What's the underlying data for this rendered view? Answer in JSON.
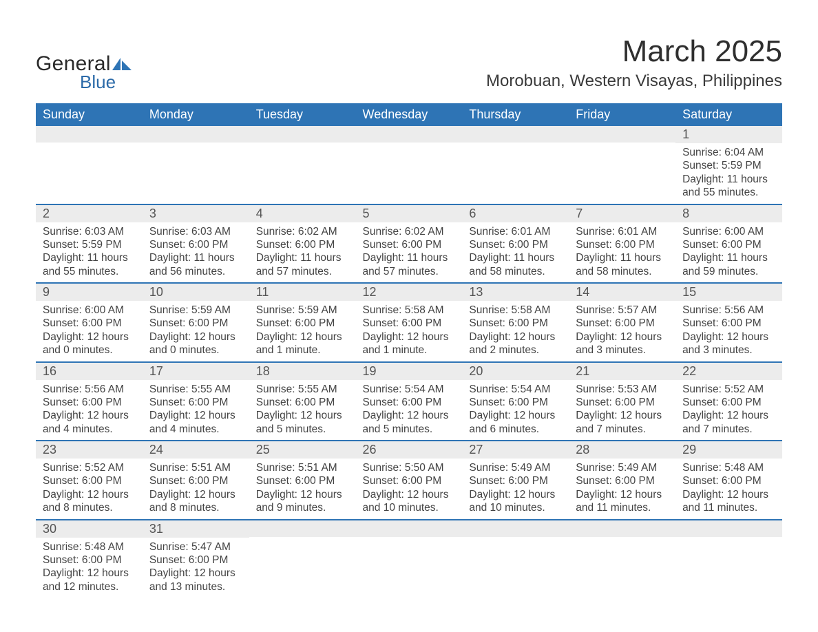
{
  "logo": {
    "general": "General",
    "blue": "Blue"
  },
  "title": {
    "month": "March 2025",
    "location": "Morobuan, Western Visayas, Philippines"
  },
  "colors": {
    "header_bg": "#2e74b5",
    "header_text": "#ffffff",
    "row_sep": "#2e74b5",
    "daynum_bg": "#ececec",
    "daynum_text": "#555555",
    "body_text": "#444444",
    "page_bg": "#ffffff",
    "logo_text": "#2a2a2a",
    "logo_blue": "#2b6aa8"
  },
  "weekdays": [
    "Sunday",
    "Monday",
    "Tuesday",
    "Wednesday",
    "Thursday",
    "Friday",
    "Saturday"
  ],
  "weeks": [
    [
      {
        "n": "",
        "sr": "",
        "ss": "",
        "dl": ""
      },
      {
        "n": "",
        "sr": "",
        "ss": "",
        "dl": ""
      },
      {
        "n": "",
        "sr": "",
        "ss": "",
        "dl": ""
      },
      {
        "n": "",
        "sr": "",
        "ss": "",
        "dl": ""
      },
      {
        "n": "",
        "sr": "",
        "ss": "",
        "dl": ""
      },
      {
        "n": "",
        "sr": "",
        "ss": "",
        "dl": ""
      },
      {
        "n": "1",
        "sr": "Sunrise: 6:04 AM",
        "ss": "Sunset: 5:59 PM",
        "dl": "Daylight: 11 hours and 55 minutes."
      }
    ],
    [
      {
        "n": "2",
        "sr": "Sunrise: 6:03 AM",
        "ss": "Sunset: 5:59 PM",
        "dl": "Daylight: 11 hours and 55 minutes."
      },
      {
        "n": "3",
        "sr": "Sunrise: 6:03 AM",
        "ss": "Sunset: 6:00 PM",
        "dl": "Daylight: 11 hours and 56 minutes."
      },
      {
        "n": "4",
        "sr": "Sunrise: 6:02 AM",
        "ss": "Sunset: 6:00 PM",
        "dl": "Daylight: 11 hours and 57 minutes."
      },
      {
        "n": "5",
        "sr": "Sunrise: 6:02 AM",
        "ss": "Sunset: 6:00 PM",
        "dl": "Daylight: 11 hours and 57 minutes."
      },
      {
        "n": "6",
        "sr": "Sunrise: 6:01 AM",
        "ss": "Sunset: 6:00 PM",
        "dl": "Daylight: 11 hours and 58 minutes."
      },
      {
        "n": "7",
        "sr": "Sunrise: 6:01 AM",
        "ss": "Sunset: 6:00 PM",
        "dl": "Daylight: 11 hours and 58 minutes."
      },
      {
        "n": "8",
        "sr": "Sunrise: 6:00 AM",
        "ss": "Sunset: 6:00 PM",
        "dl": "Daylight: 11 hours and 59 minutes."
      }
    ],
    [
      {
        "n": "9",
        "sr": "Sunrise: 6:00 AM",
        "ss": "Sunset: 6:00 PM",
        "dl": "Daylight: 12 hours and 0 minutes."
      },
      {
        "n": "10",
        "sr": "Sunrise: 5:59 AM",
        "ss": "Sunset: 6:00 PM",
        "dl": "Daylight: 12 hours and 0 minutes."
      },
      {
        "n": "11",
        "sr": "Sunrise: 5:59 AM",
        "ss": "Sunset: 6:00 PM",
        "dl": "Daylight: 12 hours and 1 minute."
      },
      {
        "n": "12",
        "sr": "Sunrise: 5:58 AM",
        "ss": "Sunset: 6:00 PM",
        "dl": "Daylight: 12 hours and 1 minute."
      },
      {
        "n": "13",
        "sr": "Sunrise: 5:58 AM",
        "ss": "Sunset: 6:00 PM",
        "dl": "Daylight: 12 hours and 2 minutes."
      },
      {
        "n": "14",
        "sr": "Sunrise: 5:57 AM",
        "ss": "Sunset: 6:00 PM",
        "dl": "Daylight: 12 hours and 3 minutes."
      },
      {
        "n": "15",
        "sr": "Sunrise: 5:56 AM",
        "ss": "Sunset: 6:00 PM",
        "dl": "Daylight: 12 hours and 3 minutes."
      }
    ],
    [
      {
        "n": "16",
        "sr": "Sunrise: 5:56 AM",
        "ss": "Sunset: 6:00 PM",
        "dl": "Daylight: 12 hours and 4 minutes."
      },
      {
        "n": "17",
        "sr": "Sunrise: 5:55 AM",
        "ss": "Sunset: 6:00 PM",
        "dl": "Daylight: 12 hours and 4 minutes."
      },
      {
        "n": "18",
        "sr": "Sunrise: 5:55 AM",
        "ss": "Sunset: 6:00 PM",
        "dl": "Daylight: 12 hours and 5 minutes."
      },
      {
        "n": "19",
        "sr": "Sunrise: 5:54 AM",
        "ss": "Sunset: 6:00 PM",
        "dl": "Daylight: 12 hours and 5 minutes."
      },
      {
        "n": "20",
        "sr": "Sunrise: 5:54 AM",
        "ss": "Sunset: 6:00 PM",
        "dl": "Daylight: 12 hours and 6 minutes."
      },
      {
        "n": "21",
        "sr": "Sunrise: 5:53 AM",
        "ss": "Sunset: 6:00 PM",
        "dl": "Daylight: 12 hours and 7 minutes."
      },
      {
        "n": "22",
        "sr": "Sunrise: 5:52 AM",
        "ss": "Sunset: 6:00 PM",
        "dl": "Daylight: 12 hours and 7 minutes."
      }
    ],
    [
      {
        "n": "23",
        "sr": "Sunrise: 5:52 AM",
        "ss": "Sunset: 6:00 PM",
        "dl": "Daylight: 12 hours and 8 minutes."
      },
      {
        "n": "24",
        "sr": "Sunrise: 5:51 AM",
        "ss": "Sunset: 6:00 PM",
        "dl": "Daylight: 12 hours and 8 minutes."
      },
      {
        "n": "25",
        "sr": "Sunrise: 5:51 AM",
        "ss": "Sunset: 6:00 PM",
        "dl": "Daylight: 12 hours and 9 minutes."
      },
      {
        "n": "26",
        "sr": "Sunrise: 5:50 AM",
        "ss": "Sunset: 6:00 PM",
        "dl": "Daylight: 12 hours and 10 minutes."
      },
      {
        "n": "27",
        "sr": "Sunrise: 5:49 AM",
        "ss": "Sunset: 6:00 PM",
        "dl": "Daylight: 12 hours and 10 minutes."
      },
      {
        "n": "28",
        "sr": "Sunrise: 5:49 AM",
        "ss": "Sunset: 6:00 PM",
        "dl": "Daylight: 12 hours and 11 minutes."
      },
      {
        "n": "29",
        "sr": "Sunrise: 5:48 AM",
        "ss": "Sunset: 6:00 PM",
        "dl": "Daylight: 12 hours and 11 minutes."
      }
    ],
    [
      {
        "n": "30",
        "sr": "Sunrise: 5:48 AM",
        "ss": "Sunset: 6:00 PM",
        "dl": "Daylight: 12 hours and 12 minutes."
      },
      {
        "n": "31",
        "sr": "Sunrise: 5:47 AM",
        "ss": "Sunset: 6:00 PM",
        "dl": "Daylight: 12 hours and 13 minutes."
      },
      {
        "n": "",
        "sr": "",
        "ss": "",
        "dl": ""
      },
      {
        "n": "",
        "sr": "",
        "ss": "",
        "dl": ""
      },
      {
        "n": "",
        "sr": "",
        "ss": "",
        "dl": ""
      },
      {
        "n": "",
        "sr": "",
        "ss": "",
        "dl": ""
      },
      {
        "n": "",
        "sr": "",
        "ss": "",
        "dl": ""
      }
    ]
  ]
}
